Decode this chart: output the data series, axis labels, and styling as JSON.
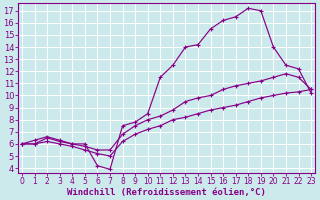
{
  "background_color": "#cce9ec",
  "grid_color": "#ffffff",
  "line_color": "#880088",
  "xlabel": "Windchill (Refroidissement éolien,°C)",
  "xticks": [
    0,
    1,
    2,
    3,
    4,
    5,
    6,
    7,
    8,
    9,
    10,
    11,
    12,
    13,
    14,
    15,
    16,
    17,
    18,
    19,
    20,
    21,
    22,
    23
  ],
  "yticks": [
    4,
    5,
    6,
    7,
    8,
    9,
    10,
    11,
    12,
    13,
    14,
    15,
    16,
    17
  ],
  "xlim": [
    -0.3,
    23.3
  ],
  "ylim": [
    3.6,
    17.6
  ],
  "series1_x": [
    0,
    1,
    2,
    3,
    4,
    5,
    6,
    7,
    8,
    9,
    10,
    11,
    12,
    13,
    14,
    15,
    16,
    17,
    18,
    19,
    20,
    21,
    22,
    23
  ],
  "series1_y": [
    6.0,
    6.3,
    6.6,
    6.3,
    6.0,
    6.0,
    4.2,
    3.9,
    7.5,
    7.8,
    8.5,
    11.5,
    12.5,
    14.0,
    14.2,
    15.5,
    16.2,
    16.5,
    17.2,
    17.0,
    14.0,
    12.5,
    12.2,
    10.2
  ],
  "series2_x": [
    0,
    1,
    2,
    3,
    4,
    5,
    6,
    7,
    8,
    9,
    10,
    11,
    12,
    13,
    14,
    15,
    16,
    17,
    18,
    19,
    20,
    21,
    22,
    23
  ],
  "series2_y": [
    6.0,
    6.0,
    6.5,
    6.2,
    6.0,
    5.8,
    5.5,
    5.5,
    6.8,
    7.5,
    8.0,
    8.3,
    8.8,
    9.5,
    9.8,
    10.0,
    10.5,
    10.8,
    11.0,
    11.2,
    11.5,
    11.8,
    11.5,
    10.5
  ],
  "series3_x": [
    0,
    1,
    2,
    3,
    4,
    5,
    6,
    7,
    8,
    9,
    10,
    11,
    12,
    13,
    14,
    15,
    16,
    17,
    18,
    19,
    20,
    21,
    22,
    23
  ],
  "series3_y": [
    6.0,
    6.0,
    6.2,
    6.0,
    5.8,
    5.5,
    5.2,
    5.0,
    6.2,
    6.8,
    7.2,
    7.5,
    8.0,
    8.2,
    8.5,
    8.8,
    9.0,
    9.2,
    9.5,
    9.8,
    10.0,
    10.2,
    10.3,
    10.5
  ]
}
